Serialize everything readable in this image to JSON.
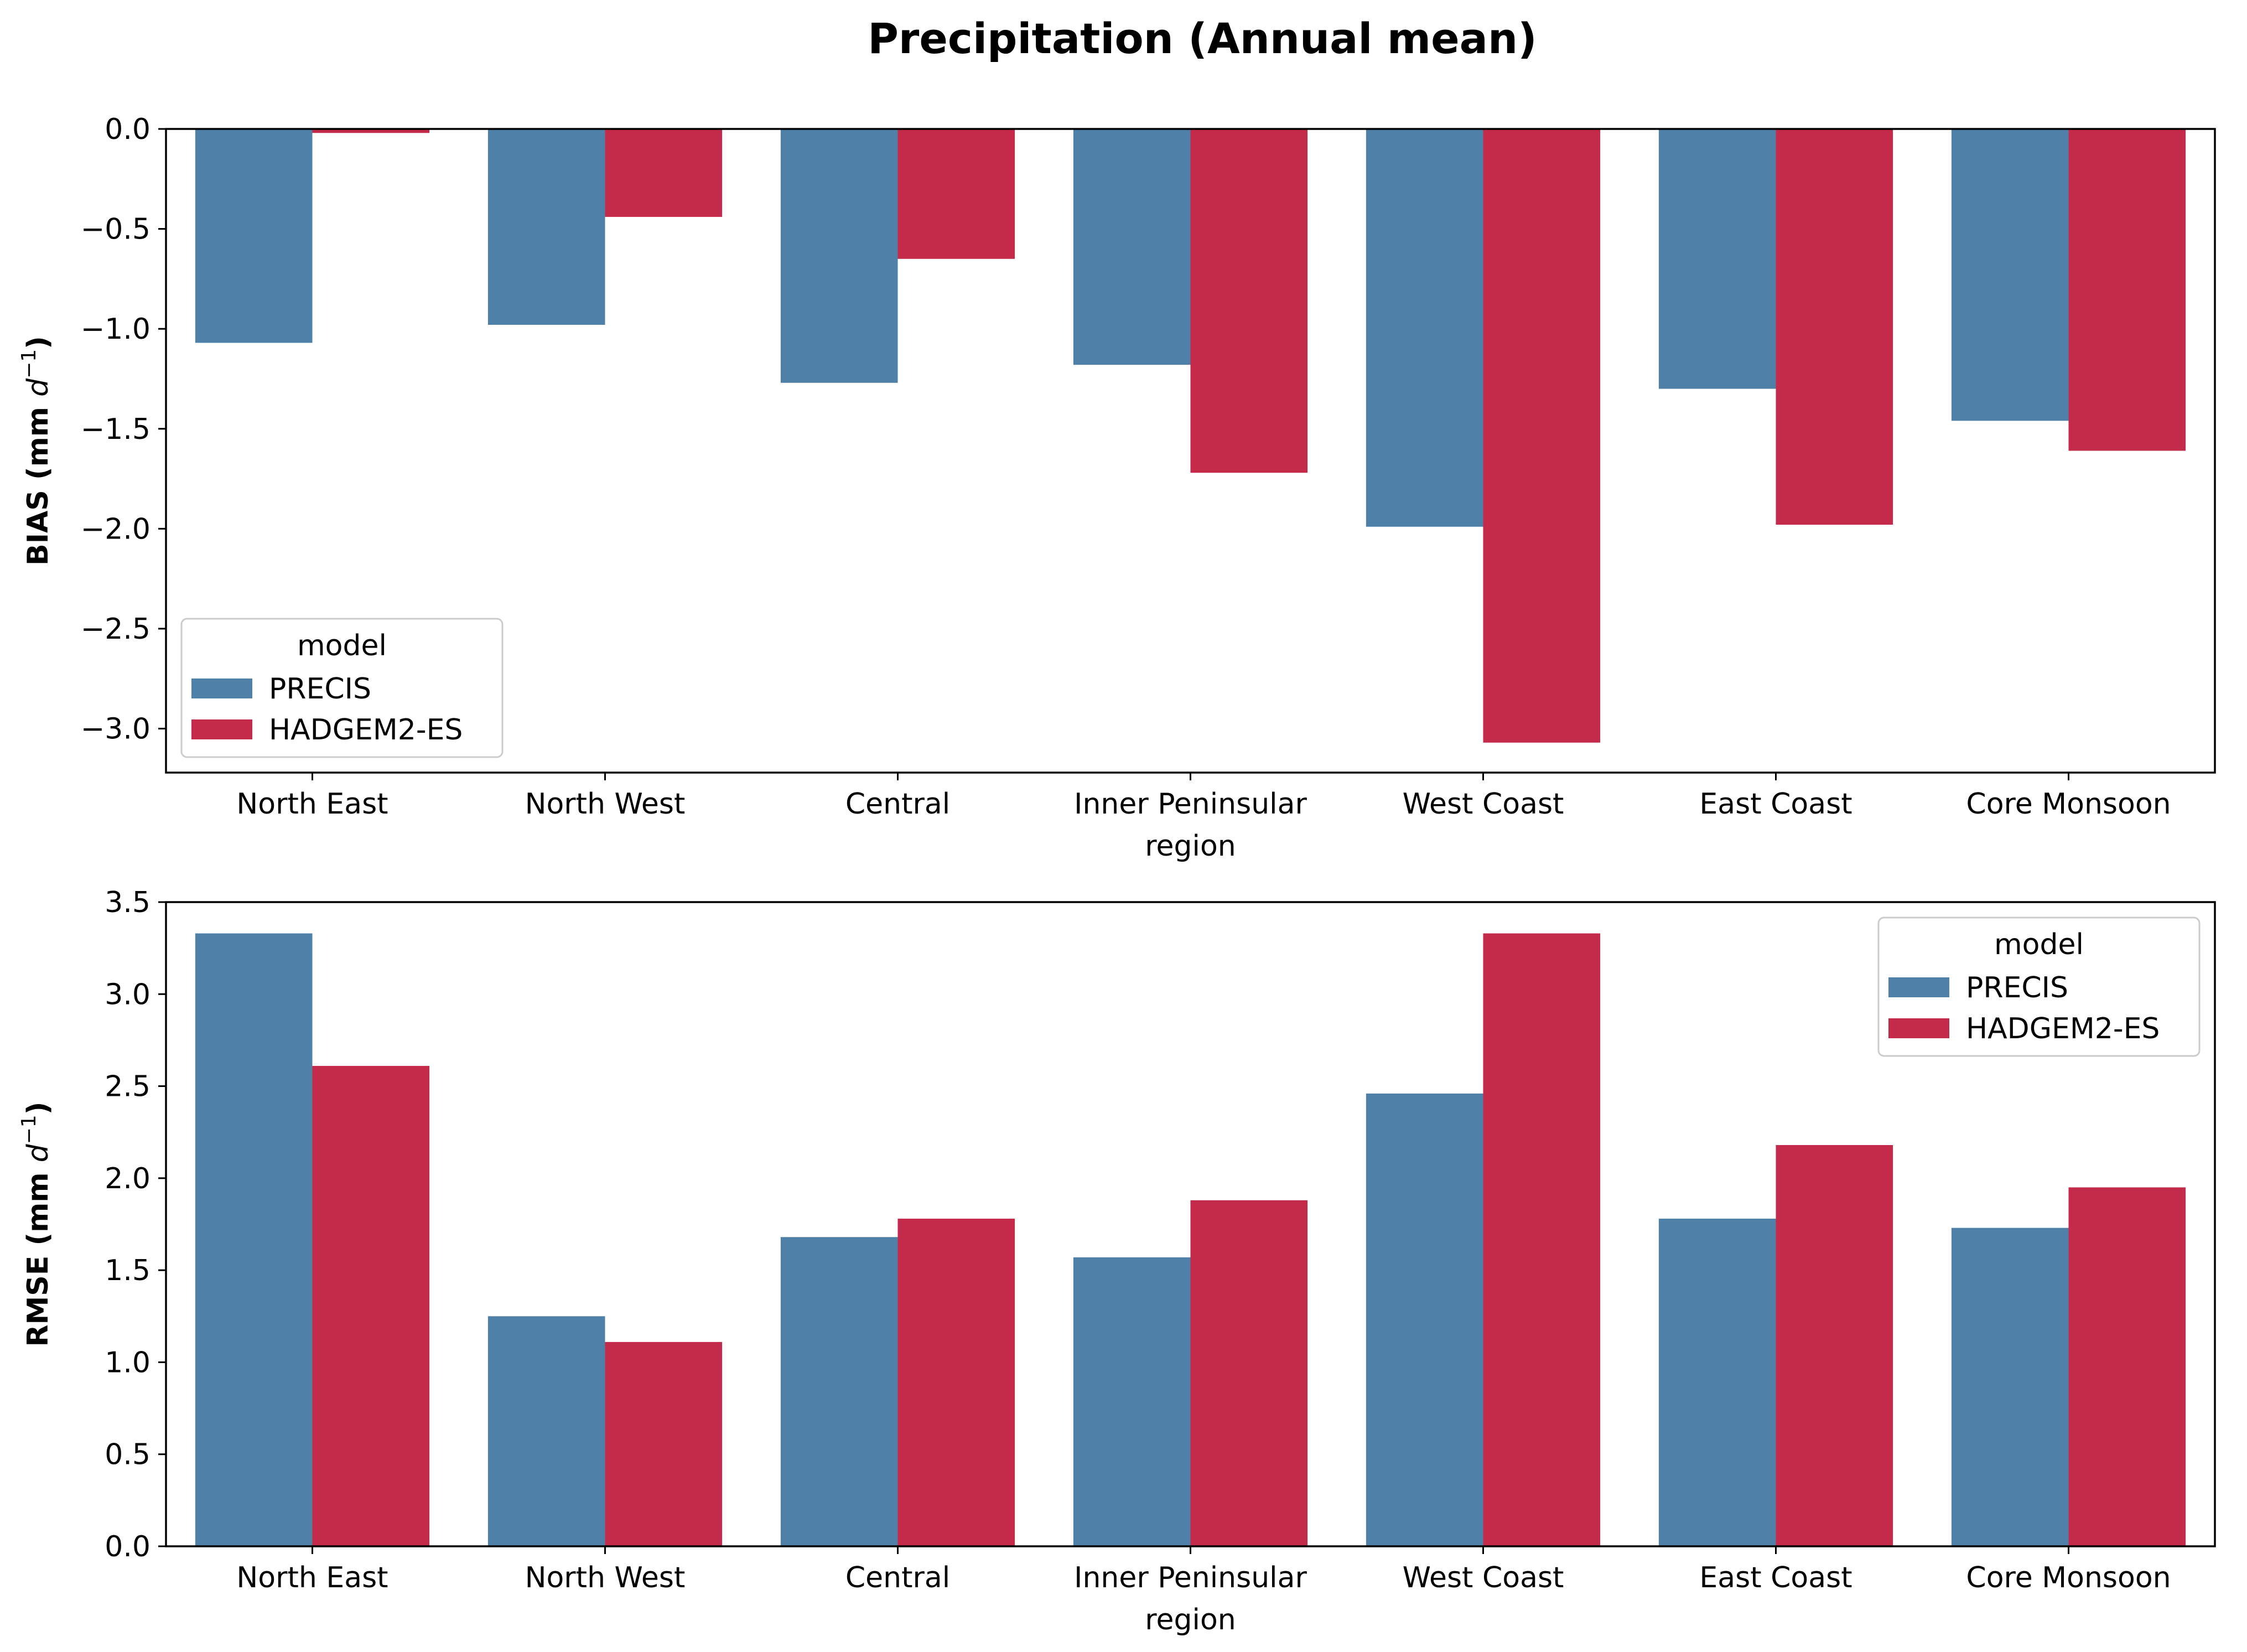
{
  "figure": {
    "title": "Precipitation (Annual mean)"
  },
  "colors": {
    "PRECIS": "#4f81a8",
    "HADGEM2-ES": "#c42a4a"
  },
  "chart_data": [
    {
      "type": "bar",
      "ylabel_main": "BIAS (mm ",
      "ylabel_unit": "d",
      "ylabel_exp": "−1",
      "ylabel_close": ")",
      "xlabel": "region",
      "categories": [
        "North East",
        "North West",
        "Central",
        "Inner Peninsular",
        "West Coast",
        "East Coast",
        "Core Monsoon"
      ],
      "series": [
        {
          "name": "PRECIS",
          "values": [
            -1.07,
            -0.98,
            -1.27,
            -1.18,
            -1.99,
            -1.3,
            -1.46
          ]
        },
        {
          "name": "HADGEM2-ES",
          "values": [
            -0.02,
            -0.44,
            -0.65,
            -1.72,
            -3.07,
            -1.98,
            -1.61
          ]
        }
      ],
      "ylim": [
        -3.22,
        0.0
      ],
      "yticks": [
        0.0,
        -0.5,
        -1.0,
        -1.5,
        -2.0,
        -2.5,
        -3.0
      ],
      "ytick_labels": [
        "0.0",
        "−0.5",
        "−1.0",
        "−1.5",
        "−2.0",
        "−2.5",
        "−3.0"
      ],
      "legend": {
        "title": "model",
        "placement": "lower-left"
      },
      "grid": false
    },
    {
      "type": "bar",
      "ylabel_main": "RMSE (mm ",
      "ylabel_unit": "d",
      "ylabel_exp": "−1",
      "ylabel_close": ")",
      "xlabel": "region",
      "categories": [
        "North East",
        "North West",
        "Central",
        "Inner Peninsular",
        "West Coast",
        "East Coast",
        "Core Monsoon"
      ],
      "series": [
        {
          "name": "PRECIS",
          "values": [
            3.33,
            1.25,
            1.68,
            1.57,
            2.46,
            1.78,
            1.73
          ]
        },
        {
          "name": "HADGEM2-ES",
          "values": [
            2.61,
            1.11,
            1.78,
            1.88,
            3.33,
            2.18,
            1.95
          ]
        }
      ],
      "ylim": [
        0.0,
        3.5
      ],
      "yticks": [
        0.0,
        0.5,
        1.0,
        1.5,
        2.0,
        2.5,
        3.0,
        3.5
      ],
      "ytick_labels": [
        "0.0",
        "0.5",
        "1.0",
        "1.5",
        "2.0",
        "2.5",
        "3.0",
        "3.5"
      ],
      "legend": {
        "title": "model",
        "placement": "upper-right"
      },
      "grid": false
    }
  ]
}
